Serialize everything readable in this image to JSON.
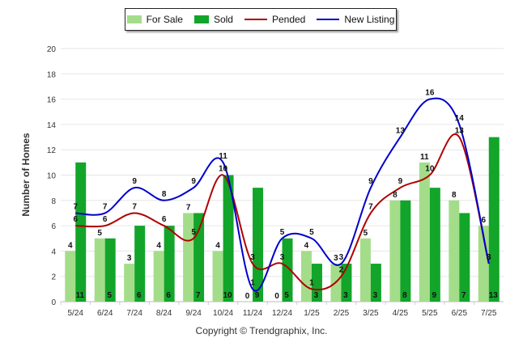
{
  "chart_data": {
    "type": "bar",
    "categories": [
      "5/24",
      "6/24",
      "7/24",
      "8/24",
      "9/24",
      "10/24",
      "11/24",
      "12/24",
      "1/25",
      "2/25",
      "3/25",
      "4/25",
      "5/25",
      "6/25",
      "7/25"
    ],
    "series": [
      {
        "name": "For Sale",
        "kind": "bar",
        "color": "#a4dd8a",
        "values": [
          4,
          5,
          3,
          4,
          7,
          4,
          0,
          0,
          4,
          3,
          5,
          8,
          11,
          8,
          6
        ]
      },
      {
        "name": "Sold",
        "kind": "bar",
        "color": "#12a52a",
        "values": [
          11,
          5,
          6,
          6,
          7,
          10,
          9,
          5,
          3,
          3,
          3,
          8,
          9,
          7,
          13
        ]
      },
      {
        "name": "Pended",
        "kind": "line",
        "color": "#b00000",
        "values": [
          6,
          6,
          7,
          6,
          5,
          10,
          3,
          3,
          1,
          2,
          7,
          9,
          10,
          13,
          3
        ]
      },
      {
        "name": "New Listing",
        "kind": "line",
        "color": "#0000cc",
        "values": [
          7,
          7,
          9,
          8,
          9,
          11,
          1,
          5,
          5,
          3,
          9,
          13,
          16,
          14,
          3
        ]
      }
    ],
    "ylabel": "Number of Homes",
    "xlabel": "",
    "ylim": [
      0,
      20
    ],
    "yticks": [
      0,
      2,
      4,
      6,
      8,
      10,
      12,
      14,
      16,
      18,
      20
    ],
    "grid": true,
    "legend_position": "top-center"
  },
  "footer": {
    "copyright": "Copyright © Trendgraphix, Inc."
  }
}
